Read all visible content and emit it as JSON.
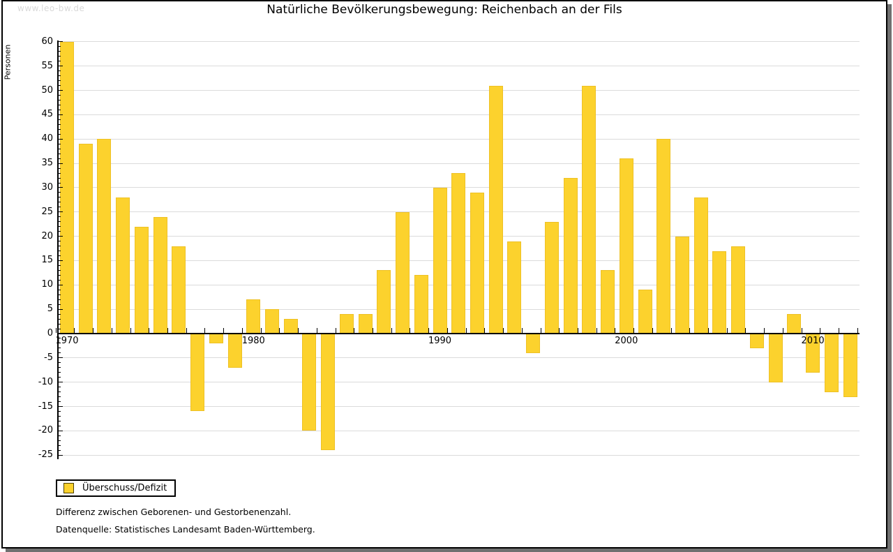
{
  "watermark": "www.leo-bw.de",
  "title": "Natürliche Bevölkerungsbewegung: Reichenbach an der Fils",
  "legend": {
    "label": "Überschuss/Defizit"
  },
  "notes": [
    "Differenz zwischen Geborenen- und Gestorbenenzahl.",
    "Datenquelle: Statistisches Landesamt Baden-Württemberg."
  ],
  "colors": {
    "bar": "#fcd22d",
    "bar_border": "#eec125",
    "grid": "#dbdbdb",
    "axis": "#000000",
    "shadow": "#707070",
    "watermark": "#d9d9d9"
  },
  "chart_data": {
    "type": "bar",
    "title": "Natürliche Bevölkerungsbewegung: Reichenbach an der Fils",
    "xlabel": "",
    "ylabel": "Personen",
    "ylim": [
      -25,
      60
    ],
    "ytick_step": 5,
    "ytick_minor_step": 1,
    "grid": true,
    "legend_position": "bottom-left",
    "legend_entries": [
      "Überschuss/Defizit"
    ],
    "decade_tick_labels": [
      "1970",
      "1980",
      "1990",
      "2000",
      "2010"
    ],
    "decade_years": [
      1970,
      1980,
      1990,
      2000,
      2010
    ],
    "categories": [
      1970,
      1971,
      1972,
      1973,
      1974,
      1975,
      1976,
      1977,
      1978,
      1979,
      1980,
      1981,
      1982,
      1983,
      1984,
      1985,
      1986,
      1987,
      1988,
      1989,
      1990,
      1991,
      1992,
      1993,
      1994,
      1995,
      1996,
      1997,
      1998,
      1999,
      2000,
      2001,
      2002,
      2003,
      2004,
      2005,
      2006,
      2007,
      2008,
      2009,
      2010,
      2011,
      2012
    ],
    "values": [
      60,
      39,
      40,
      28,
      22,
      24,
      18,
      -16,
      -2,
      -7,
      7,
      5,
      3,
      -20,
      -24,
      4,
      4,
      13,
      25,
      12,
      30,
      33,
      29,
      51,
      19,
      -4,
      23,
      32,
      51,
      13,
      36,
      9,
      40,
      20,
      28,
      17,
      18,
      -3,
      -10,
      4,
      -8,
      -12,
      -13
    ]
  }
}
